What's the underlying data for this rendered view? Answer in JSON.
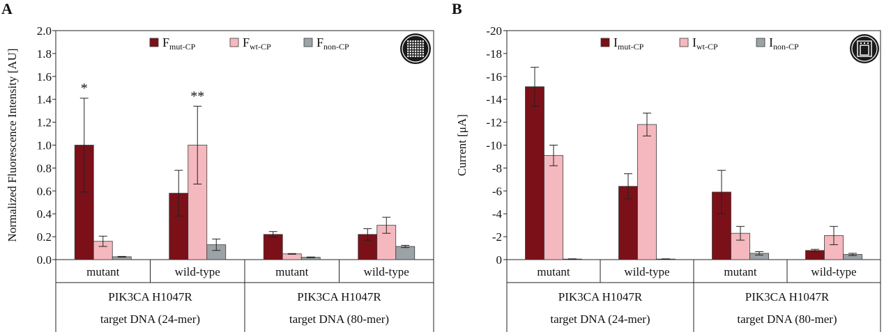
{
  "chart_data": [
    {
      "panel_label": "A",
      "type": "bar",
      "ylabel": "Normalized Fluorescence Intensity [AU]",
      "ylim": [
        0,
        2.0
      ],
      "yticks": [
        "0.0",
        "0.2",
        "0.4",
        "0.6",
        "0.8",
        "1.0",
        "1.2",
        "1.4",
        "1.6",
        "1.8",
        "2.0"
      ],
      "legend_position": "top-right",
      "legend": [
        {
          "base": "F",
          "sub": "mut-CP"
        },
        {
          "base": "F",
          "sub": "wt-CP"
        },
        {
          "base": "F",
          "sub": "non-CP"
        }
      ],
      "categories": [
        "mutant",
        "wild-type",
        "mutant",
        "wild-type"
      ],
      "group_labels": [
        {
          "line1": "PIK3CA H1047R",
          "line2": "target DNA (24-mer)"
        },
        {
          "line1": "PIK3CA H1047R",
          "line2": "target DNA (80-mer)"
        }
      ],
      "series": [
        {
          "name": "mut-CP",
          "values": [
            1.0,
            0.58,
            0.22,
            0.22
          ],
          "errors": [
            0.41,
            0.2,
            0.025,
            0.05
          ]
        },
        {
          "name": "wt-CP",
          "values": [
            0.16,
            1.0,
            0.05,
            0.3
          ],
          "errors": [
            0.045,
            0.34,
            0.003,
            0.07
          ]
        },
        {
          "name": "non-CP",
          "values": [
            0.025,
            0.13,
            0.02,
            0.115
          ],
          "errors": [
            0.003,
            0.05,
            0.003,
            0.01
          ]
        }
      ],
      "annotations": [
        {
          "category": 0,
          "series": 0,
          "text": "*"
        },
        {
          "category": 1,
          "series": 1,
          "text": "**"
        }
      ],
      "icon": "microarray-chip-icon",
      "invert_axis": false
    },
    {
      "panel_label": "B",
      "type": "bar",
      "ylabel": "Current [μA]",
      "ylim": [
        0,
        -20
      ],
      "yticks": [
        "0",
        "-2",
        "-4",
        "-6",
        "-8",
        "-10",
        "-12",
        "-14",
        "-16",
        "-18",
        "-20"
      ],
      "legend_position": "top-right",
      "legend": [
        {
          "base": "I",
          "sub": "mut-CP"
        },
        {
          "base": "I",
          "sub": "wt-CP"
        },
        {
          "base": "I",
          "sub": "non-CP"
        }
      ],
      "categories": [
        "mutant",
        "wild-type",
        "mutant",
        "wild-type"
      ],
      "group_labels": [
        {
          "line1": "PIK3CA H1047R",
          "line2": "target DNA (24-mer)"
        },
        {
          "line1": "PIK3CA H1047R",
          "line2": "target DNA (80-mer)"
        }
      ],
      "series": [
        {
          "name": "mut-CP",
          "values": [
            -15.1,
            -6.4,
            -5.9,
            -0.8
          ],
          "errors": [
            1.7,
            1.1,
            1.9,
            0.1
          ]
        },
        {
          "name": "wt-CP",
          "values": [
            -9.1,
            -11.8,
            -2.3,
            -2.1
          ],
          "errors": [
            0.9,
            1.0,
            0.6,
            0.8
          ]
        },
        {
          "name": "non-CP",
          "values": [
            -0.05,
            -0.05,
            -0.55,
            -0.45
          ],
          "errors": [
            0.02,
            0.02,
            0.15,
            0.1
          ]
        }
      ],
      "annotations": [],
      "icon": "electrode-chip-icon",
      "invert_axis": true
    }
  ],
  "colors": {
    "mut-CP": "#7b1018",
    "wt-CP": "#f4b8be",
    "non-CP": "#9ca3a7",
    "axis": "#222222"
  }
}
